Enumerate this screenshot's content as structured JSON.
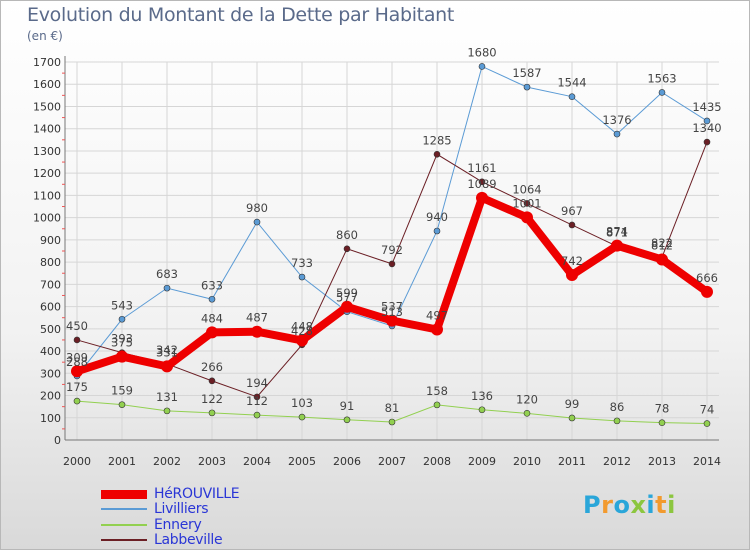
{
  "title": "Evolution du Montant de la Dette par Habitant",
  "unit": "(en €)",
  "logo": {
    "text": "Proxiti",
    "letter_colors": [
      "#2aa6d9",
      "#f29a2e",
      "#2aa6d9",
      "#8cc63f",
      "#2aa6d9",
      "#f29a2e",
      "#8cc63f"
    ]
  },
  "chart_data": {
    "type": "line",
    "x": [
      "2000",
      "2001",
      "2002",
      "2003",
      "2004",
      "2005",
      "2006",
      "2007",
      "2008",
      "2009",
      "2010",
      "2011",
      "2012",
      "2013",
      "2014"
    ],
    "ylim": [
      0,
      1700
    ],
    "yticks": [
      0,
      100,
      200,
      300,
      400,
      500,
      600,
      700,
      800,
      900,
      1000,
      1100,
      1200,
      1300,
      1400,
      1500,
      1600,
      1700
    ],
    "grid": true,
    "legend_position": "bottom-left",
    "series": [
      {
        "name": "Livilliers",
        "color": "#5b9bd5",
        "stroke": 1,
        "marker": 3,
        "values": [
          288,
          543,
          683,
          633,
          980,
          733,
          577,
          513,
          940,
          1680,
          1587,
          1544,
          1376,
          1563,
          1435
        ]
      },
      {
        "name": "Ennery",
        "color": "#92d050",
        "stroke": 1,
        "marker": 3,
        "values": [
          175,
          159,
          131,
          122,
          112,
          103,
          91,
          81,
          158,
          136,
          120,
          99,
          86,
          78,
          74
        ]
      },
      {
        "name": "Labbeville",
        "color": "#6b1f25",
        "stroke": 1,
        "marker": 3,
        "values": [
          450,
          393,
          342,
          266,
          194,
          428,
          860,
          792,
          1285,
          1161,
          1064,
          967,
          871,
          822,
          1340
        ]
      },
      {
        "name": "HéROUVILLE",
        "color": "#ee0000",
        "stroke": 8,
        "marker": 6,
        "values": [
          309,
          375,
          331,
          484,
          487,
          448,
          599,
          537,
          497,
          1089,
          1001,
          742,
          874,
          812,
          666
        ]
      }
    ],
    "legend_order": [
      "HéROUVILLE",
      "Livilliers",
      "Ennery",
      "Labbeville"
    ]
  }
}
